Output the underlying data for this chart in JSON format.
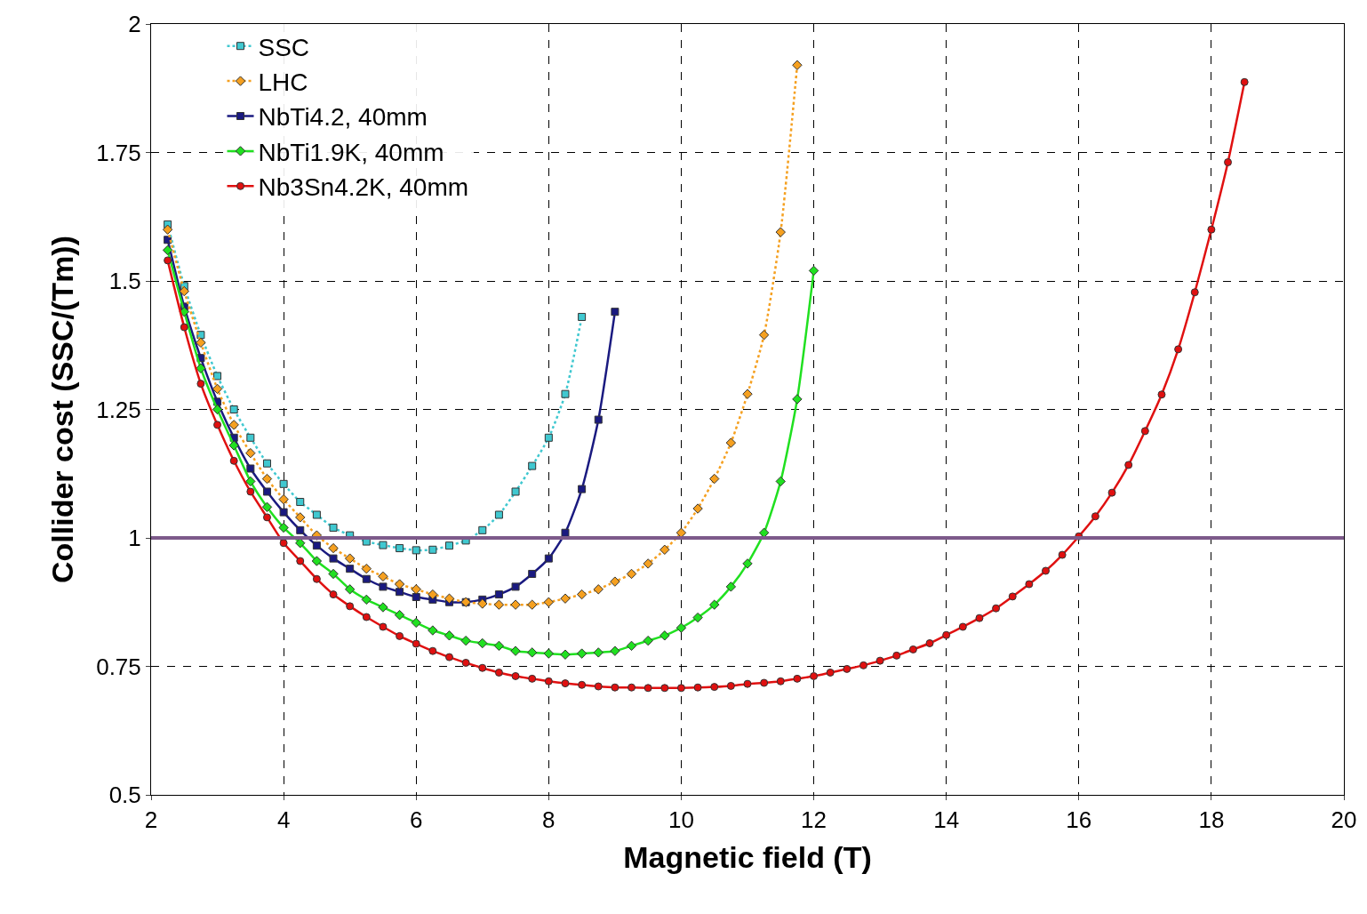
{
  "chart_data": {
    "type": "line",
    "xlabel": "Magnetic field (T)",
    "ylabel": "Collider cost (SSC/(Tm))",
    "xlim": [
      2,
      20
    ],
    "xticks": [
      2,
      4,
      6,
      8,
      10,
      12,
      14,
      16,
      18,
      20
    ],
    "ylim": [
      0.5,
      2
    ],
    "yticks": [
      0.5,
      0.75,
      1,
      1.25,
      1.5,
      1.75,
      2
    ],
    "grid": true,
    "legend": "top left",
    "ref_lines": [
      {
        "axis": "y",
        "value": 1,
        "color": "#7d5a8a"
      }
    ],
    "series": [
      {
        "name": "SSC",
        "color": "#40c8d0",
        "marker": "square",
        "line_style": "dotted",
        "x": [
          2.25,
          2.5,
          2.75,
          3,
          3.25,
          3.5,
          3.75,
          4,
          4.25,
          4.5,
          4.75,
          5,
          5.25,
          5.5,
          5.75,
          6,
          6.25,
          6.5,
          6.75,
          7,
          7.25,
          7.5,
          7.75,
          8,
          8.25,
          8.5
        ],
        "values": [
          1.61,
          1.49,
          1.395,
          1.315,
          1.25,
          1.195,
          1.145,
          1.105,
          1.07,
          1.045,
          1.02,
          1.005,
          0.993,
          0.986,
          0.98,
          0.976,
          0.977,
          0.985,
          0.995,
          1.015,
          1.045,
          1.09,
          1.14,
          1.195,
          1.28,
          1.43
        ]
      },
      {
        "name": "LHC",
        "color": "#f5a020",
        "marker": "diamond",
        "line_style": "dotted",
        "x": [
          2.25,
          2.5,
          2.75,
          3,
          3.25,
          3.5,
          3.75,
          4,
          4.25,
          4.5,
          4.75,
          5,
          5.25,
          5.5,
          5.75,
          6,
          6.25,
          6.5,
          6.75,
          7,
          7.25,
          7.5,
          7.75,
          8,
          8.25,
          8.5,
          8.75,
          9,
          9.25,
          9.5,
          9.75,
          10,
          10.25,
          10.5,
          10.75,
          11,
          11.25,
          11.5,
          11.75
        ],
        "values": [
          1.6,
          1.48,
          1.38,
          1.29,
          1.22,
          1.165,
          1.115,
          1.075,
          1.04,
          1.005,
          0.98,
          0.96,
          0.94,
          0.925,
          0.91,
          0.9,
          0.89,
          0.882,
          0.875,
          0.872,
          0.87,
          0.87,
          0.87,
          0.875,
          0.882,
          0.89,
          0.9,
          0.915,
          0.93,
          0.95,
          0.977,
          1.01,
          1.057,
          1.115,
          1.185,
          1.28,
          1.395,
          1.595,
          1.92
        ]
      },
      {
        "name": "NbTi4.2, 40mm",
        "color": "#1a1a80",
        "marker": "square",
        "line_style": "solid",
        "x": [
          2.25,
          2.5,
          2.75,
          3,
          3.25,
          3.5,
          3.75,
          4,
          4.25,
          4.5,
          4.75,
          5,
          5.25,
          5.5,
          5.75,
          6,
          6.25,
          6.5,
          6.75,
          7,
          7.25,
          7.5,
          7.75,
          8,
          8.25,
          8.5,
          8.75,
          9
        ],
        "values": [
          1.58,
          1.45,
          1.35,
          1.265,
          1.195,
          1.135,
          1.09,
          1.05,
          1.015,
          0.985,
          0.96,
          0.94,
          0.92,
          0.905,
          0.895,
          0.885,
          0.88,
          0.875,
          0.875,
          0.88,
          0.89,
          0.905,
          0.93,
          0.96,
          1.01,
          1.095,
          1.23,
          1.44
        ]
      },
      {
        "name": "NbTi1.9K, 40mm",
        "color": "#20e020",
        "marker": "diamond",
        "line_style": "solid",
        "x": [
          2.25,
          2.5,
          2.75,
          3,
          3.25,
          3.5,
          3.75,
          4,
          4.25,
          4.5,
          4.75,
          5,
          5.25,
          5.5,
          5.75,
          6,
          6.25,
          6.5,
          6.75,
          7,
          7.25,
          7.5,
          7.75,
          8,
          8.25,
          8.5,
          8.75,
          9,
          9.25,
          9.5,
          9.75,
          10,
          10.25,
          10.5,
          10.75,
          11,
          11.25,
          11.5,
          11.75,
          12
        ],
        "values": [
          1.56,
          1.44,
          1.33,
          1.25,
          1.18,
          1.11,
          1.06,
          1.02,
          0.99,
          0.955,
          0.93,
          0.9,
          0.88,
          0.865,
          0.85,
          0.835,
          0.82,
          0.81,
          0.8,
          0.795,
          0.79,
          0.78,
          0.777,
          0.775,
          0.773,
          0.775,
          0.777,
          0.78,
          0.79,
          0.8,
          0.81,
          0.825,
          0.845,
          0.87,
          0.905,
          0.95,
          1.01,
          1.11,
          1.27,
          1.52
        ]
      },
      {
        "name": "Nb3Sn4.2K, 40mm",
        "color": "#e01010",
        "marker": "circle",
        "line_style": "solid",
        "x": [
          2.25,
          2.5,
          2.75,
          3,
          3.25,
          3.5,
          3.75,
          4,
          4.25,
          4.5,
          4.75,
          5,
          5.25,
          5.5,
          5.75,
          6,
          6.25,
          6.5,
          6.75,
          7,
          7.25,
          7.5,
          7.75,
          8,
          8.25,
          8.5,
          8.75,
          9,
          9.25,
          9.5,
          9.75,
          10,
          10.25,
          10.5,
          10.75,
          11,
          11.25,
          11.5,
          11.75,
          12,
          12.25,
          12.5,
          12.75,
          13,
          13.25,
          13.5,
          13.75,
          14,
          14.25,
          14.5,
          14.75,
          15,
          15.25,
          15.5,
          15.75,
          16,
          16.25,
          16.5,
          16.75,
          17,
          17.25,
          17.5,
          17.75,
          18,
          18.25,
          18.5
        ],
        "values": [
          1.54,
          1.41,
          1.3,
          1.22,
          1.15,
          1.09,
          1.04,
          0.99,
          0.955,
          0.92,
          0.89,
          0.867,
          0.846,
          0.827,
          0.809,
          0.794,
          0.78,
          0.768,
          0.757,
          0.747,
          0.738,
          0.731,
          0.726,
          0.721,
          0.717,
          0.714,
          0.711,
          0.709,
          0.709,
          0.708,
          0.708,
          0.708,
          0.709,
          0.71,
          0.712,
          0.716,
          0.718,
          0.721,
          0.726,
          0.731,
          0.738,
          0.745,
          0.752,
          0.761,
          0.771,
          0.783,
          0.795,
          0.811,
          0.827,
          0.844,
          0.863,
          0.886,
          0.91,
          0.936,
          0.967,
          1.003,
          1.042,
          1.088,
          1.142,
          1.208,
          1.279,
          1.367,
          1.478,
          1.6,
          1.731,
          1.887
        ]
      }
    ]
  }
}
